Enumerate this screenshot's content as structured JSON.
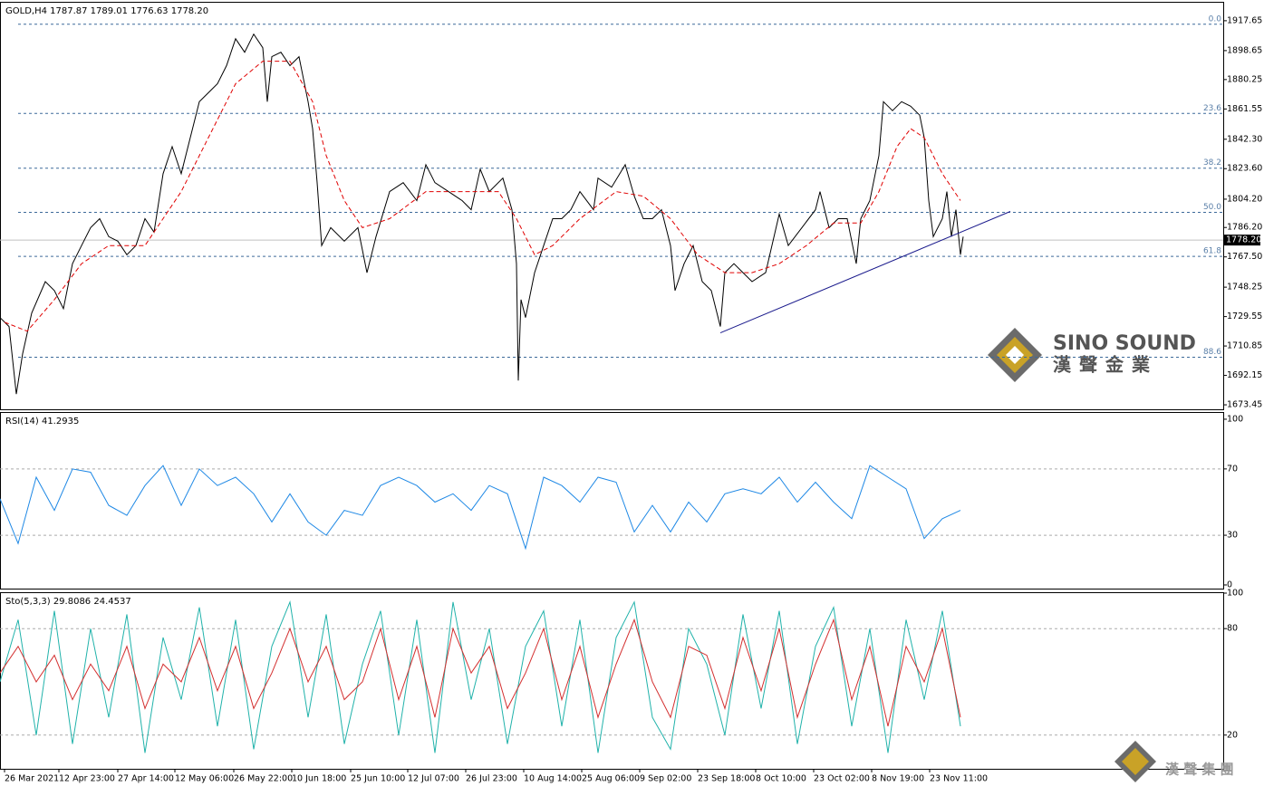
{
  "chart_data": [
    {
      "type": "line",
      "title": "GOLD,H4  1787.87 1789.01 1776.63 1778.20",
      "xlim": [
        0,
        1350
      ],
      "ylim": [
        1670.6,
        1929.1
      ],
      "xticks": [
        {
          "value": 5,
          "label": "26 Mar 2021"
        },
        {
          "value": 65,
          "label": "12 Apr 23:00"
        },
        {
          "value": 130,
          "label": "27 Apr 14:00"
        },
        {
          "value": 193,
          "label": "12 May 06:00"
        },
        {
          "value": 258,
          "label": "26 May 22:00"
        },
        {
          "value": 322,
          "label": "10 Jun 18:00"
        },
        {
          "value": 387,
          "label": "25 Jun 10:00"
        },
        {
          "value": 450,
          "label": "12 Jul 07:00"
        },
        {
          "value": 514,
          "label": "26 Jul 23:00"
        },
        {
          "value": 578,
          "label": "10 Aug 14:00"
        },
        {
          "value": 642,
          "label": "25 Aug 06:00"
        },
        {
          "value": 706,
          "label": "9 Sep 02:00"
        },
        {
          "value": 770,
          "label": "23 Sep 18:00"
        },
        {
          "value": 834,
          "label": "8 Oct 10:00"
        },
        {
          "value": 898,
          "label": "23 Oct 02:00"
        },
        {
          "value": 962,
          "label": "8 Nov 19:00"
        },
        {
          "value": 1026,
          "label": "23 Nov 11:00"
        }
      ],
      "yticks": [
        1917.65,
        1898.65,
        1880.25,
        1861.55,
        {
          "value": 1842.3,
          "label": "1842.30"
        },
        {
          "value": 1823.6,
          "label": "1823.60"
        },
        {
          "value": 1804.2,
          "label": "1804.20"
        },
        {
          "value": 1786.2,
          "label": "1786.20"
        },
        {
          "value": 1767.5,
          "label": "1767.50"
        },
        1748.25,
        1729.55,
        1710.85,
        1692.15,
        1673.45
      ],
      "series": [
        {
          "color": "#000000",
          "x": [
            0,
            10,
            18,
            25,
            35,
            50,
            60,
            70,
            80,
            90,
            100,
            110,
            120,
            130,
            140,
            150,
            160,
            170,
            180,
            190,
            200,
            210,
            220,
            230,
            240,
            250,
            260,
            270,
            280,
            290,
            295,
            300,
            310,
            320,
            330,
            340,
            345,
            350,
            355,
            365,
            380,
            395,
            405,
            415,
            430,
            445,
            460,
            470,
            480,
            495,
            510,
            520,
            530,
            540,
            555,
            565,
            570,
            572,
            575,
            580,
            590,
            600,
            610,
            620,
            630,
            640,
            655,
            660,
            675,
            690,
            700,
            710,
            720,
            730,
            740,
            745,
            755,
            765,
            775,
            785,
            795,
            800,
            810,
            820,
            830,
            845,
            860,
            870,
            885,
            900,
            905,
            915,
            925,
            935,
            945,
            950,
            960,
            970,
            975,
            985,
            995,
            1005,
            1015,
            1020,
            1025,
            1030,
            1040,
            1045,
            1050,
            1055,
            1060,
            1063
          ],
          "values": [
            1728.9,
            1723.2,
            1680.3,
            1706.0,
            1731.8,
            1751.8,
            1746.1,
            1734.6,
            1763.2,
            1774.7,
            1786.1,
            1791.8,
            1780.4,
            1777.5,
            1768.9,
            1774.7,
            1791.8,
            1783.2,
            1820.4,
            1837.6,
            1820.4,
            1843.3,
            1866.2,
            1871.9,
            1877.6,
            1889.1,
            1906.2,
            1897.6,
            1909.1,
            1900.5,
            1866.2,
            1894.8,
            1897.6,
            1889.1,
            1894.8,
            1866.2,
            1849.0,
            1814.7,
            1774.7,
            1786.1,
            1777.5,
            1786.1,
            1757.5,
            1780.4,
            1809.0,
            1814.7,
            1803.3,
            1826.1,
            1814.7,
            1809.0,
            1803.3,
            1797.5,
            1823.3,
            1809.0,
            1817.6,
            1797.5,
            1763.2,
            1688.9,
            1740.3,
            1728.9,
            1757.5,
            1774.7,
            1791.8,
            1791.8,
            1797.5,
            1809.0,
            1797.5,
            1817.6,
            1811.8,
            1826.1,
            1806.1,
            1791.8,
            1791.8,
            1797.5,
            1774.7,
            1746.1,
            1763.2,
            1774.7,
            1751.8,
            1746.1,
            1723.2,
            1757.5,
            1763.2,
            1757.5,
            1751.8,
            1757.5,
            1794.7,
            1774.7,
            1786.1,
            1797.5,
            1809.0,
            1786.1,
            1791.8,
            1791.8,
            1763.2,
            1791.8,
            1803.3,
            1831.9,
            1866.2,
            1860.5,
            1866.2,
            1863.3,
            1857.6,
            1843.3,
            1803.3,
            1780.4,
            1791.8,
            1809.0,
            1780.4,
            1797.5,
            1768.9,
            1780.4
          ]
        },
        {
          "color": "#e00000",
          "dashed": true,
          "x": [
            5,
            30,
            60,
            90,
            120,
            160,
            200,
            230,
            260,
            290,
            320,
            345,
            360,
            380,
            400,
            430,
            470,
            510,
            550,
            570,
            590,
            610,
            640,
            680,
            710,
            740,
            770,
            800,
            830,
            860,
            890,
            920,
            950,
            970,
            990,
            1005,
            1020,
            1040,
            1060
          ],
          "values": [
            1726.0,
            1720.3,
            1740.3,
            1763.2,
            1774.7,
            1774.7,
            1809.0,
            1843.3,
            1877.6,
            1891.9,
            1891.9,
            1866.2,
            1831.9,
            1803.3,
            1786.1,
            1791.8,
            1809.0,
            1809.0,
            1809.0,
            1791.8,
            1768.9,
            1774.7,
            1791.8,
            1809.0,
            1806.1,
            1791.8,
            1768.9,
            1757.5,
            1757.5,
            1763.2,
            1774.7,
            1789.0,
            1789.0,
            1809.0,
            1837.6,
            1849.0,
            1843.3,
            1820.4,
            1803.3
          ]
        }
      ],
      "fib_levels": [
        {
          "level": "0.0",
          "price": 1915.4
        },
        {
          "level": "23.6",
          "price": 1858.7
        },
        {
          "level": "38.2",
          "price": 1823.9
        },
        {
          "level": "50.0",
          "price": 1795.8
        },
        {
          "level": "61.8",
          "price": 1767.8
        },
        {
          "level": "88.6",
          "price": 1703.7
        }
      ],
      "last_price": {
        "value": 1778.2,
        "label": "1778.20"
      },
      "trendline": {
        "x": [
          795,
          1115
        ],
        "y": [
          1719.2,
          1796.4
        ],
        "color": "#1a1a8c"
      }
    },
    {
      "type": "line",
      "title": "RSI(14) 41.2935",
      "xlim": [
        0,
        1350
      ],
      "ylim": [
        -2.2,
        103.8
      ],
      "yticks": [
        100,
        70,
        30,
        0
      ],
      "grid_lines": [
        70,
        30
      ],
      "series": [
        {
          "color": "#1e88e5",
          "x": [
            0,
            20,
            40,
            60,
            80,
            100,
            120,
            140,
            160,
            180,
            200,
            220,
            240,
            260,
            280,
            300,
            320,
            340,
            360,
            380,
            400,
            420,
            440,
            460,
            480,
            500,
            520,
            540,
            560,
            580,
            600,
            620,
            640,
            660,
            680,
            700,
            720,
            740,
            760,
            780,
            800,
            820,
            840,
            860,
            880,
            900,
            920,
            940,
            960,
            980,
            1000,
            1020,
            1040,
            1060
          ],
          "values": [
            52,
            25,
            65,
            45,
            70,
            68,
            48,
            42,
            60,
            72,
            48,
            70,
            60,
            65,
            55,
            38,
            55,
            38,
            30,
            45,
            42,
            60,
            65,
            60,
            50,
            55,
            45,
            60,
            55,
            22,
            65,
            60,
            50,
            65,
            62,
            32,
            48,
            32,
            50,
            38,
            55,
            58,
            55,
            65,
            50,
            62,
            50,
            40,
            72,
            65,
            58,
            28,
            40,
            45
          ]
        }
      ]
    },
    {
      "type": "line",
      "title": "Sto(5,3,3) 29.8086 24.4537",
      "xlim": [
        0,
        1350
      ],
      "ylim": [
        1,
        100
      ],
      "yticks": [
        100,
        80,
        20
      ],
      "grid_lines": [
        80,
        20
      ],
      "series": [
        {
          "color": "#20b2aa",
          "x": [
            0,
            20,
            40,
            60,
            80,
            100,
            120,
            140,
            160,
            180,
            200,
            220,
            240,
            260,
            280,
            300,
            320,
            340,
            360,
            380,
            400,
            420,
            440,
            460,
            480,
            500,
            520,
            540,
            560,
            580,
            600,
            620,
            640,
            660,
            680,
            700,
            720,
            740,
            760,
            780,
            800,
            820,
            840,
            860,
            880,
            900,
            920,
            940,
            960,
            980,
            1000,
            1020,
            1040,
            1060
          ],
          "values": [
            50,
            85,
            20,
            90,
            15,
            80,
            30,
            88,
            10,
            75,
            40,
            92,
            25,
            85,
            12,
            70,
            95,
            30,
            88,
            15,
            60,
            90,
            20,
            85,
            10,
            95,
            40,
            80,
            15,
            70,
            90,
            25,
            85,
            10,
            75,
            95,
            30,
            12,
            80,
            60,
            20,
            88,
            35,
            90,
            15,
            70,
            92,
            25,
            80,
            10,
            85,
            40,
            90,
            25
          ]
        },
        {
          "color": "#d32f2f",
          "x": [
            0,
            20,
            40,
            60,
            80,
            100,
            120,
            140,
            160,
            180,
            200,
            220,
            240,
            260,
            280,
            300,
            320,
            340,
            360,
            380,
            400,
            420,
            440,
            460,
            480,
            500,
            520,
            540,
            560,
            580,
            600,
            620,
            640,
            660,
            680,
            700,
            720,
            740,
            760,
            780,
            800,
            820,
            840,
            860,
            880,
            900,
            920,
            940,
            960,
            980,
            1000,
            1020,
            1040,
            1060
          ],
          "values": [
            55,
            70,
            50,
            65,
            40,
            60,
            45,
            70,
            35,
            60,
            50,
            75,
            45,
            70,
            35,
            55,
            80,
            50,
            70,
            40,
            50,
            80,
            40,
            70,
            30,
            80,
            55,
            70,
            35,
            55,
            80,
            40,
            70,
            30,
            60,
            85,
            50,
            30,
            70,
            65,
            35,
            75,
            45,
            80,
            30,
            60,
            85,
            40,
            70,
            25,
            70,
            50,
            80,
            30
          ]
        }
      ]
    }
  ],
  "watermark": {
    "brand": "SINO SOUND",
    "brand_cn": "漢聲金業",
    "group_cn": "漢 聲 集 團"
  }
}
